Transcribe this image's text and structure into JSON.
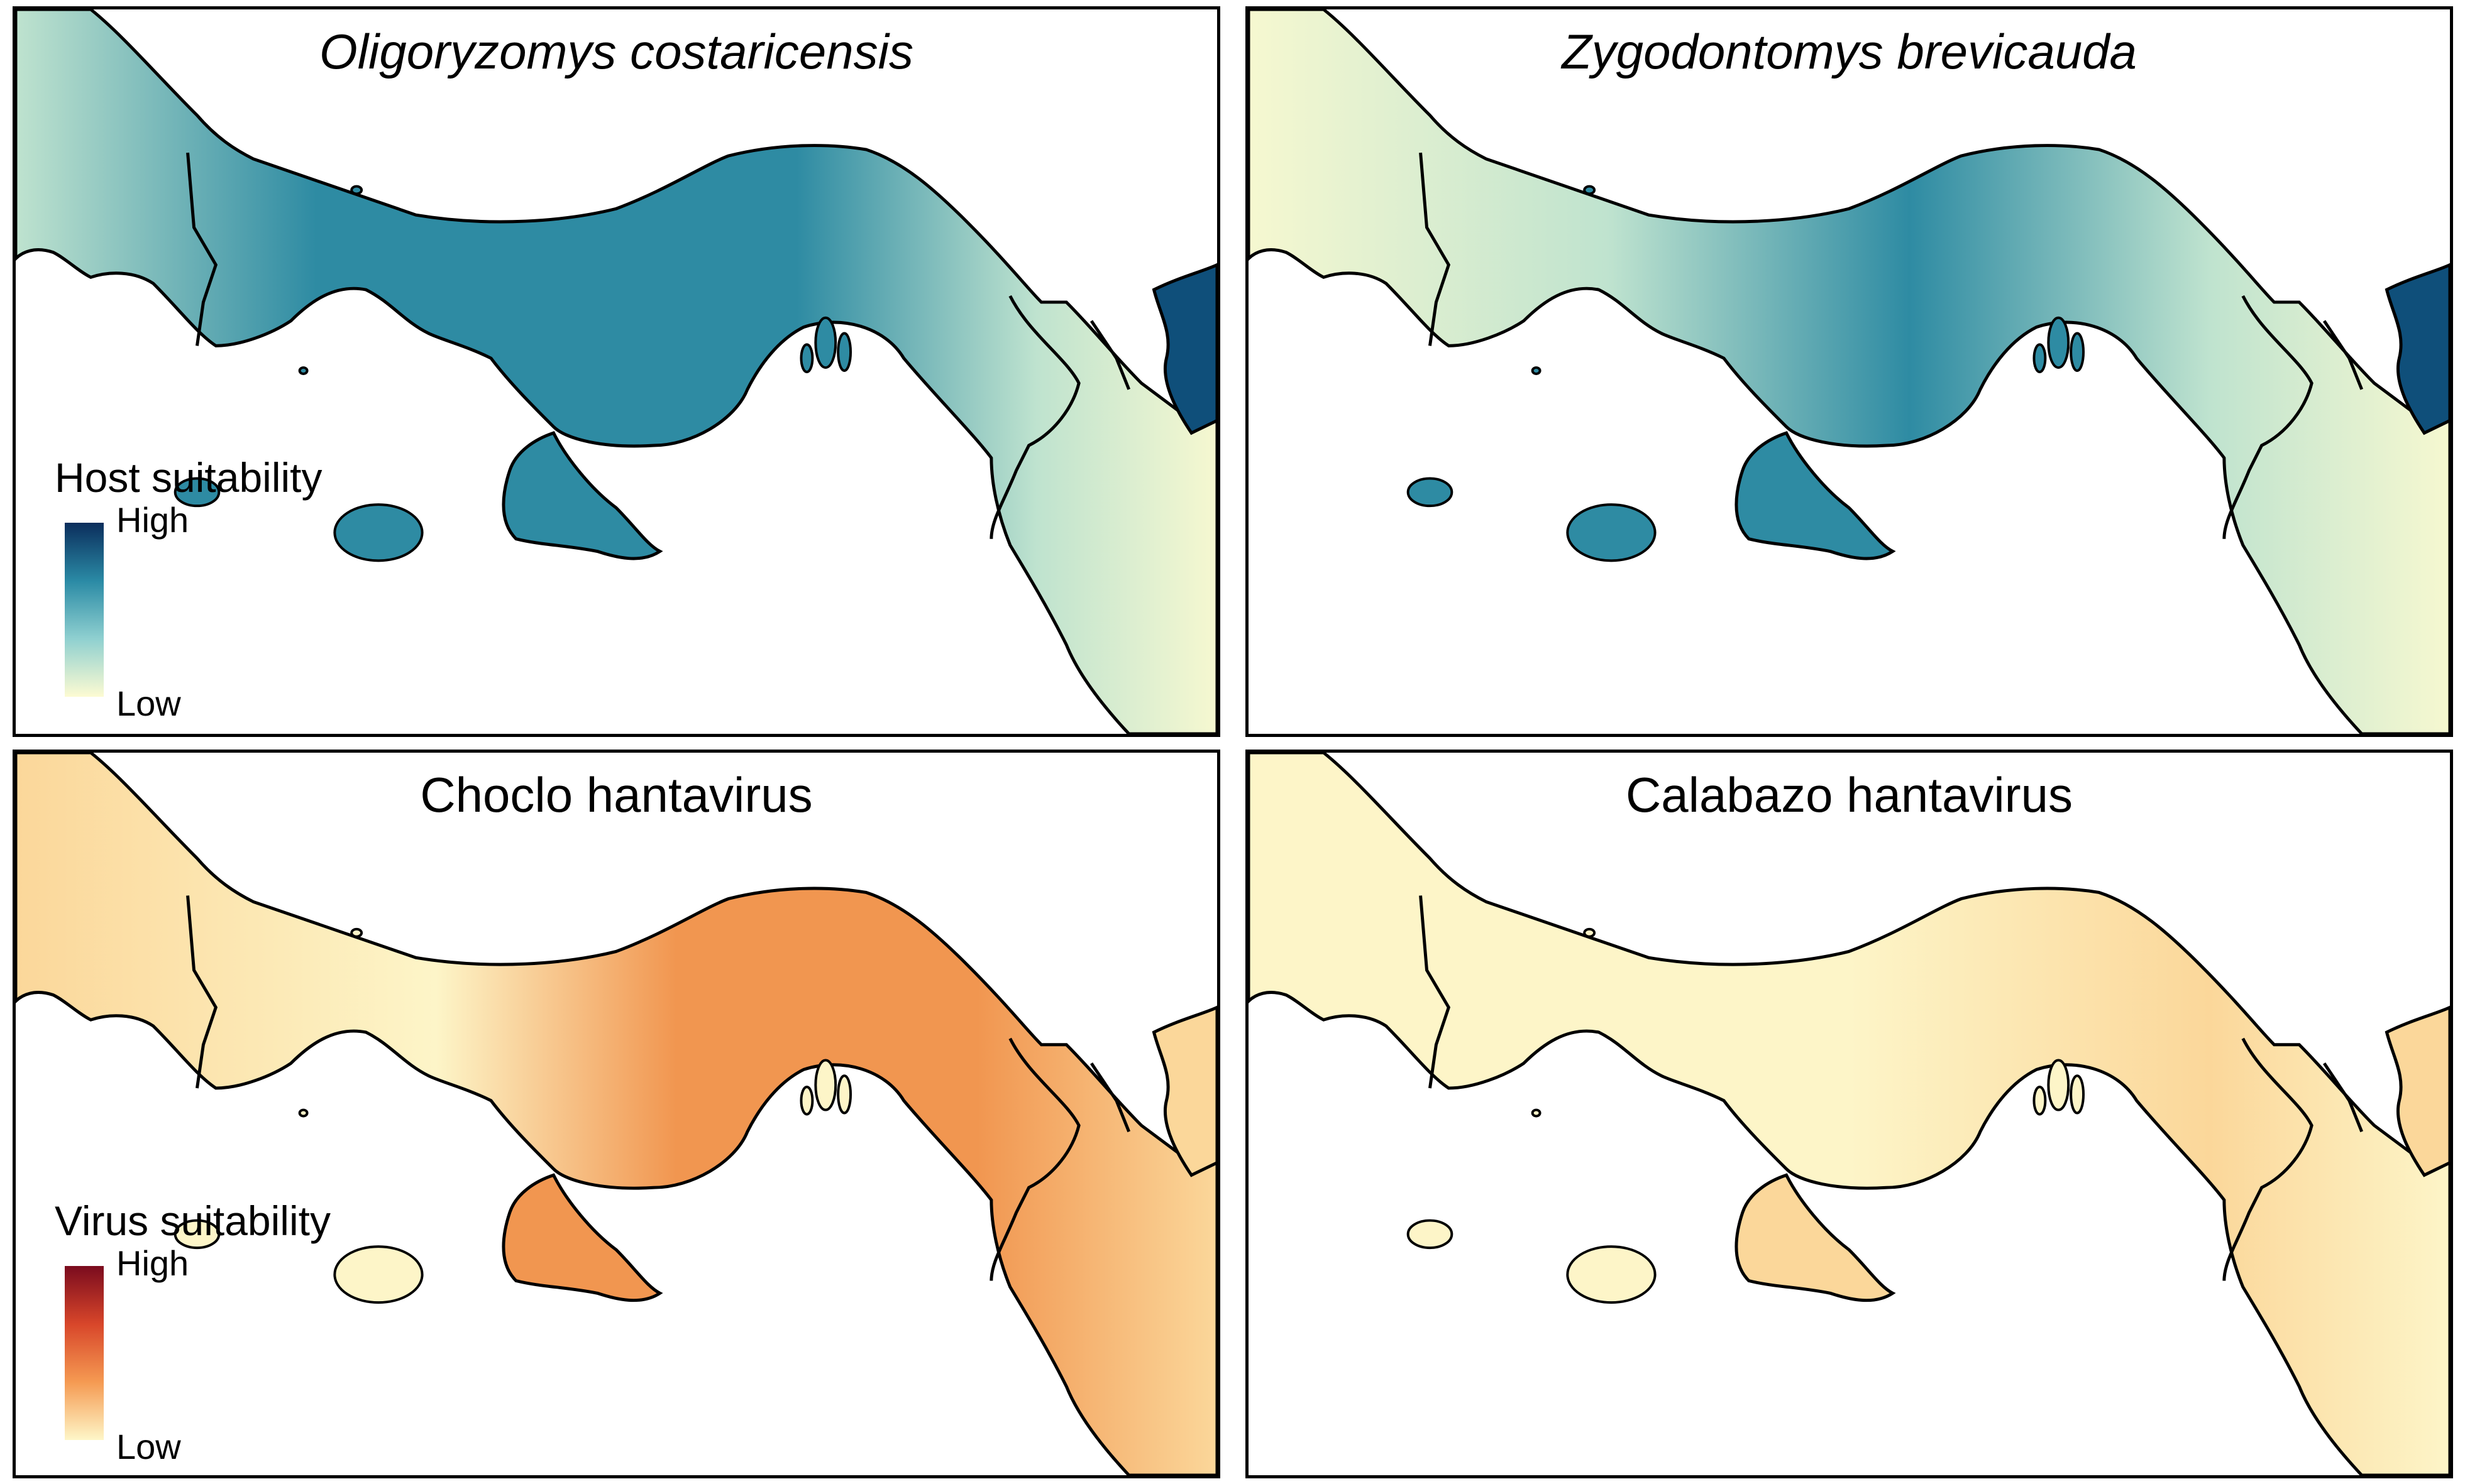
{
  "panels": [
    {
      "title": "Oligoryzomys costaricensis",
      "italic": true,
      "palette": "host"
    },
    {
      "title": "Zygodontomys brevicauda",
      "italic": true,
      "palette": "host"
    },
    {
      "title": "Choclo hantavirus",
      "italic": false,
      "palette": "virus"
    },
    {
      "title": "Calabazo hantavirus",
      "italic": false,
      "palette": "virus"
    }
  ],
  "legends": {
    "host": {
      "title": "Host suitability",
      "high": "High",
      "low": "Low",
      "colors": [
        "#0b2d5c",
        "#2a8aa5",
        "#8fd0d0",
        "#fdfbd2"
      ]
    },
    "virus": {
      "title": "Virus suitability",
      "high": "High",
      "low": "Low",
      "colors": [
        "#7a0b1e",
        "#d8462a",
        "#f59a52",
        "#fef6c8"
      ]
    }
  },
  "palettes": {
    "host": {
      "base": "#2e8ba3",
      "light": "#bfe3cf",
      "lightest": "#f6f8d0",
      "dark": "#0f4f7a",
      "island": "#2e8ba3"
    },
    "virus": {
      "base": "#fdf5c8",
      "light": "#fbd79a",
      "mid": "#f19650",
      "dark": "#b8451e",
      "island": "#fdf5c8"
    }
  }
}
